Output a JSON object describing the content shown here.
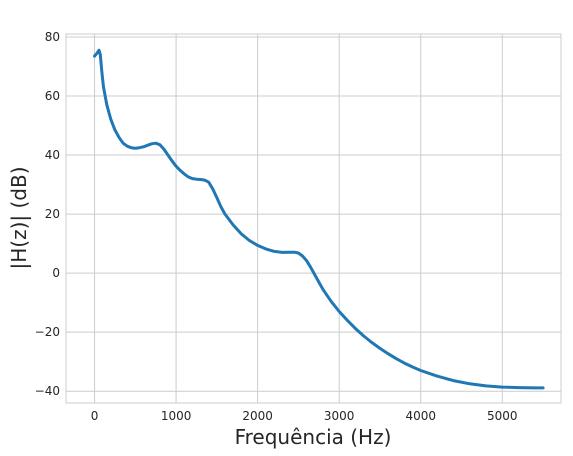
{
  "chart_data": {
    "type": "line",
    "title": "",
    "xlabel": "Frequência (Hz)",
    "ylabel": "|H(z)| (dB)",
    "xlim": [
      -350,
      5720
    ],
    "ylim": [
      -44,
      81
    ],
    "xticks": [
      0,
      1000,
      2000,
      3000,
      4000,
      5000
    ],
    "yticks": [
      -40,
      -20,
      0,
      20,
      40,
      60,
      80
    ],
    "xtick_labels": [
      "0",
      "1000",
      "2000",
      "3000",
      "4000",
      "5000"
    ],
    "ytick_labels": [
      "−40",
      "−20",
      "0",
      "20",
      "40",
      "60",
      "80"
    ],
    "grid": true,
    "style": "whitegrid",
    "series": [
      {
        "color": "#1f77b4",
        "x": [
          0,
          30,
          55,
          70,
          90,
          110,
          150,
          200,
          250,
          300,
          350,
          400,
          450,
          500,
          550,
          600,
          650,
          700,
          750,
          800,
          850,
          900,
          950,
          1000,
          1050,
          1100,
          1150,
          1200,
          1250,
          1300,
          1350,
          1400,
          1450,
          1500,
          1550,
          1600,
          1700,
          1800,
          1900,
          2000,
          2100,
          2200,
          2300,
          2400,
          2450,
          2500,
          2550,
          2600,
          2650,
          2700,
          2750,
          2800,
          2900,
          3000,
          3100,
          3200,
          3300,
          3400,
          3500,
          3600,
          3700,
          3800,
          3900,
          4000,
          4200,
          4400,
          4600,
          4800,
          5000,
          5200,
          5400,
          5500
        ],
        "y": [
          73.5,
          74.5,
          75.5,
          74,
          68,
          63,
          57,
          52,
          48.5,
          46,
          44,
          43,
          42.5,
          42.3,
          42.5,
          42.8,
          43.3,
          43.8,
          44,
          43.5,
          42,
          40,
          38,
          36.2,
          34.8,
          33.6,
          32.6,
          32,
          31.8,
          31.7,
          31.5,
          30.8,
          28.5,
          25.5,
          22.5,
          20,
          16.3,
          13.3,
          11,
          9.4,
          8.2,
          7.4,
          7,
          7.1,
          7.1,
          6.8,
          5.8,
          4.2,
          2,
          -0.5,
          -3,
          -5.5,
          -9.5,
          -13,
          -16,
          -18.8,
          -21.3,
          -23.5,
          -25.5,
          -27.3,
          -29,
          -30.5,
          -31.8,
          -33,
          -34.9,
          -36.4,
          -37.5,
          -38.2,
          -38.6,
          -38.8,
          -38.9,
          -38.9
        ]
      }
    ]
  }
}
